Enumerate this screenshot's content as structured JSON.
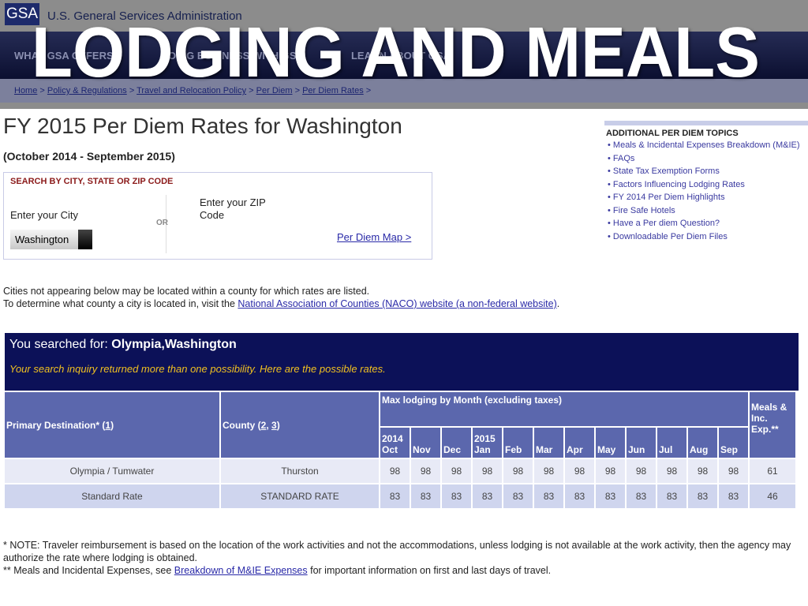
{
  "overlay_title": "LODGING AND MEALS",
  "header": {
    "logo": "GSA",
    "agency": "U.S. General Services Administration",
    "nav": [
      "WHAT GSA OFFERS",
      "DOING BUSINESS WITH GSA",
      "LEARN ABOUT GSA"
    ],
    "breadcrumbs": [
      "Home",
      "Policy & Regulations",
      "Travel and Relocation Policy",
      "Per Diem",
      "Per Diem Rates"
    ]
  },
  "page": {
    "title": "FY 2015 Per Diem Rates for Washington",
    "subtitle": "(October 2014 - September 2015)"
  },
  "search": {
    "heading": "SEARCH BY CITY, STATE OR ZIP CODE",
    "city_label": "Enter your City",
    "or": "OR",
    "zip_label": "Enter your ZIP Code",
    "city_value": "Washington",
    "map_link": "Per Diem Map >"
  },
  "cities_note": {
    "line1": "Cities not appearing below may be located within a county for which rates are listed.",
    "line2": "To determine what county a city is located in, visit the ",
    "link": "National Association of Counties (NACO) website (a non-federal website)",
    "end": "."
  },
  "sidebar": {
    "heading": "ADDITIONAL PER DIEM TOPICS",
    "items": [
      "Meals & Incidental Expenses Breakdown (M&IE)",
      "FAQs",
      "State Tax Exemption Forms",
      "Factors Influencing Lodging Rates",
      "FY 2014 Per Diem Highlights",
      "Fire Safe Hotels",
      "Have a Per diem Question?",
      "Downloadable Per Diem Files"
    ]
  },
  "result": {
    "prefix": "You searched for: ",
    "query": "Olympia,Washington",
    "message": "Your search inquiry returned more than one possibility. Here are the possible rates."
  },
  "table": {
    "col_primary": "Primary Destination* (",
    "col_primary_ref": "1",
    "col_county": "County (",
    "county_ref1": "2",
    "county_ref2": "3",
    "col_lodging": "Max lodging by Month (excluding taxes)",
    "year1": "2014",
    "year2": "2015",
    "col_meals": "Meals & Inc. Exp.**",
    "months": [
      "Oct",
      "Nov",
      "Dec",
      "Jan",
      "Feb",
      "Mar",
      "Apr",
      "May",
      "Jun",
      "Jul",
      "Aug",
      "Sep"
    ],
    "rows": [
      {
        "destination": "Olympia / Tumwater",
        "county": "Thurston",
        "rates": [
          98,
          98,
          98,
          98,
          98,
          98,
          98,
          98,
          98,
          98,
          98,
          98
        ],
        "meals": 61
      },
      {
        "destination": "Standard Rate",
        "county": "STANDARD RATE",
        "rates": [
          83,
          83,
          83,
          83,
          83,
          83,
          83,
          83,
          83,
          83,
          83,
          83
        ],
        "meals": 46
      }
    ]
  },
  "notes": {
    "note1": "* NOTE: Traveler reimbursement is based on the location of the work activities and not the accommodations, unless lodging is not available at the work activity, then the agency may authorize the rate where lodging is obtained.",
    "note2_pre": "** Meals and Incidental Expenses, see ",
    "note2_link": "Breakdown of M&IE Expenses",
    "note2_post": " for important information on first and last days of travel."
  }
}
